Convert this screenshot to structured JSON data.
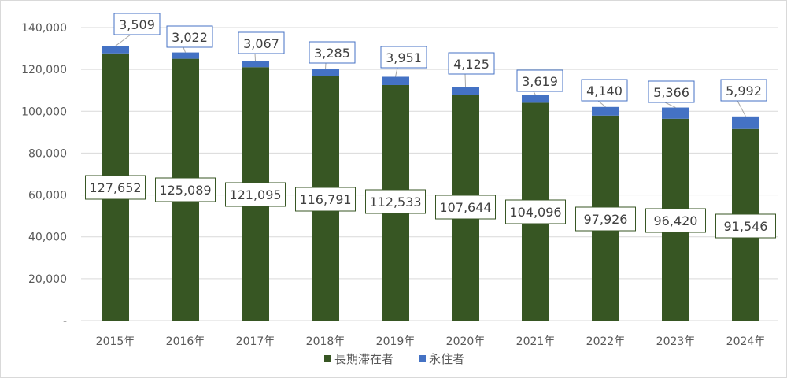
{
  "chart_data": {
    "type": "bar",
    "stacked": true,
    "categories": [
      "2015年",
      "2016年",
      "2017年",
      "2018年",
      "2019年",
      "2020年",
      "2021年",
      "2022年",
      "2023年",
      "2024年"
    ],
    "series": [
      {
        "name": "長期滞在者",
        "color": "#375623",
        "values": [
          127652,
          125089,
          121095,
          116791,
          112533,
          107644,
          104096,
          97926,
          96420,
          91546
        ]
      },
      {
        "name": "永住者",
        "color": "#4472C4",
        "values": [
          3509,
          3022,
          3067,
          3285,
          3951,
          4125,
          3619,
          4140,
          5366,
          5992
        ]
      }
    ],
    "ylim": [
      0,
      140000
    ],
    "yticks": [
      0,
      20000,
      40000,
      60000,
      80000,
      100000,
      120000,
      140000
    ],
    "ytick_labels": [
      "-",
      "20,000",
      "40,000",
      "60,000",
      "80,000",
      "100,000",
      "120,000",
      "140,000"
    ],
    "grid": true,
    "legend": "bottom",
    "title": "",
    "xlabel": "",
    "ylabel": ""
  }
}
